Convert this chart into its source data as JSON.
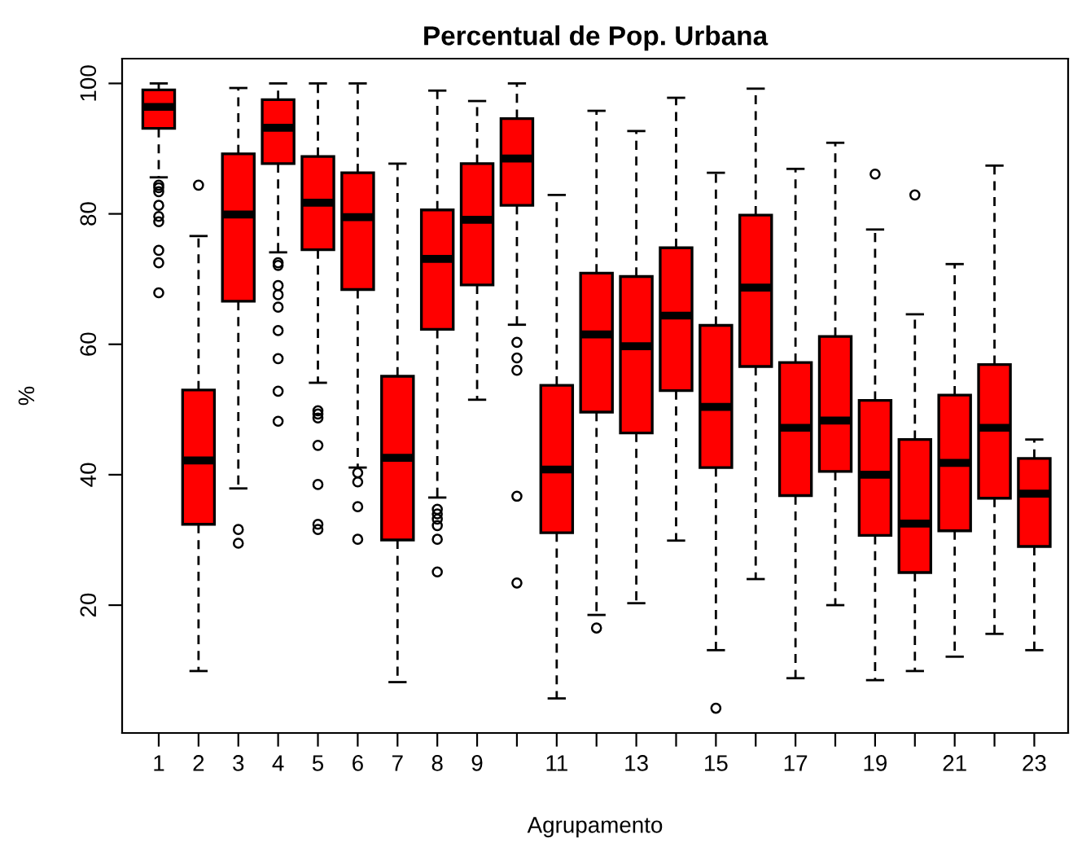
{
  "chart_data": {
    "type": "box",
    "title": "Percentual de Pop. Urbana",
    "xlabel": "Agrupamento",
    "ylabel": "%",
    "categories": [
      "1",
      "2",
      "3",
      "4",
      "5",
      "6",
      "7",
      "8",
      "9",
      null,
      "11",
      null,
      "13",
      null,
      "15",
      null,
      "17",
      null,
      "19",
      null,
      "21",
      null,
      "23"
    ],
    "color": "#ff0000",
    "ylim": [
      0.4,
      103.8
    ],
    "yticks": [
      20,
      40,
      60,
      80,
      100
    ],
    "grid": false,
    "boxes": [
      {
        "low": 85.6,
        "q1": 93.1,
        "median": 96.4,
        "q3": 99,
        "high": 100,
        "outliers": [
          84.4,
          84,
          83.4,
          81.3,
          79.6,
          78.8,
          74.4,
          72.5,
          67.9
        ]
      },
      {
        "low": 9.9,
        "q1": 32.4,
        "median": 42.2,
        "q3": 53,
        "high": 76.6,
        "outliers": [
          84.4
        ]
      },
      {
        "low": 37.9,
        "q1": 66.6,
        "median": 79.9,
        "q3": 89.2,
        "high": 99.3,
        "outliers": [
          31.6,
          29.5
        ]
      },
      {
        "low": 74.1,
        "q1": 87.7,
        "median": 93.2,
        "q3": 97.5,
        "high": 100,
        "outliers": [
          72.5,
          72.1,
          69,
          67.6,
          65.7,
          62.1,
          57.8,
          52.8,
          48.2
        ]
      },
      {
        "low": 54.1,
        "q1": 74.5,
        "median": 81.7,
        "q3": 88.8,
        "high": 100,
        "outliers": [
          49.8,
          49.3,
          48.7,
          44.5,
          38.5,
          32.4,
          31.6
        ]
      },
      {
        "low": 41.1,
        "q1": 68.4,
        "median": 79.5,
        "q3": 86.3,
        "high": 100,
        "outliers": [
          40.3,
          38.9,
          35.1,
          30.1
        ]
      },
      {
        "low": 8.2,
        "q1": 30,
        "median": 42.6,
        "q3": 55.1,
        "high": 87.7
      },
      {
        "low": 36.5,
        "q1": 62.3,
        "median": 73.1,
        "q3": 80.6,
        "high": 98.9,
        "outliers": [
          34.7,
          34,
          33.2,
          32.2,
          30.1,
          25.1
        ]
      },
      {
        "low": 51.5,
        "q1": 69.1,
        "median": 79.1,
        "q3": 87.7,
        "high": 97.3
      },
      {
        "low": 63,
        "q1": 81.3,
        "median": 88.5,
        "q3": 94.6,
        "high": 100,
        "outliers": [
          60.3,
          57.9,
          56,
          36.7,
          23.4
        ]
      },
      {
        "low": 5.7,
        "q1": 31.1,
        "median": 40.8,
        "q3": 53.7,
        "high": 82.9
      },
      {
        "low": 18.5,
        "q1": 49.6,
        "median": 61.5,
        "q3": 70.9,
        "high": 95.8,
        "outliers": [
          16.5
        ]
      },
      {
        "low": 20.3,
        "q1": 46.4,
        "median": 59.7,
        "q3": 70.4,
        "high": 92.7
      },
      {
        "low": 29.9,
        "q1": 52.9,
        "median": 64.4,
        "q3": 74.8,
        "high": 97.8
      },
      {
        "low": 13.1,
        "q1": 41.1,
        "median": 50.4,
        "q3": 62.9,
        "high": 86.3,
        "outliers": [
          4.2
        ]
      },
      {
        "low": 24,
        "q1": 56.6,
        "median": 68.7,
        "q3": 79.8,
        "high": 99.2
      },
      {
        "low": 8.8,
        "q1": 36.8,
        "median": 47.2,
        "q3": 57.2,
        "high": 86.9
      },
      {
        "low": 20,
        "q1": 40.5,
        "median": 48.3,
        "q3": 61.2,
        "high": 90.9
      },
      {
        "low": 8.5,
        "q1": 30.7,
        "median": 40,
        "q3": 51.4,
        "high": 77.6,
        "outliers": [
          86.1
        ]
      },
      {
        "low": 9.9,
        "q1": 25,
        "median": 32.5,
        "q3": 45.4,
        "high": 64.6,
        "outliers": [
          82.9
        ]
      },
      {
        "low": 12.1,
        "q1": 31.4,
        "median": 41.8,
        "q3": 52.2,
        "high": 72.3
      },
      {
        "low": 15.6,
        "q1": 36.4,
        "median": 47.2,
        "q3": 56.9,
        "high": 87.4
      },
      {
        "low": 13.1,
        "q1": 29,
        "median": 37.1,
        "q3": 42.5,
        "high": 45.4
      }
    ]
  }
}
